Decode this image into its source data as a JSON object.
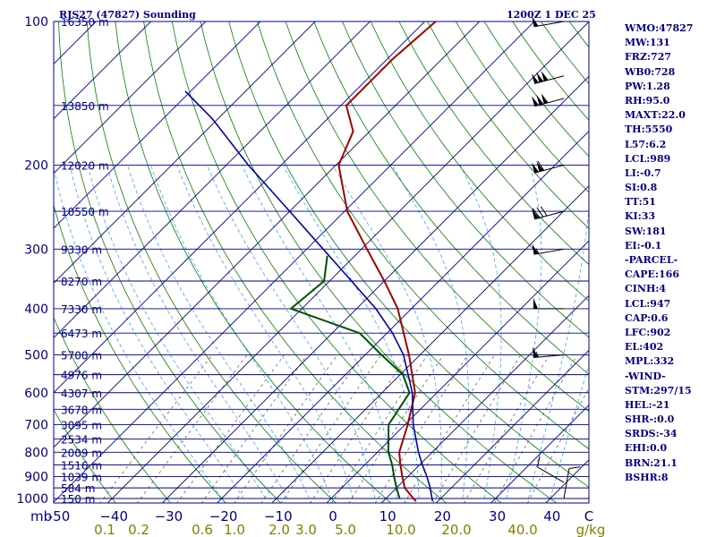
{
  "header": {
    "station": "RJS27 (47827) Sounding",
    "time": "1200Z  1 DEC 25"
  },
  "indices": [
    "WMO:47827",
    "MW:131",
    "FRZ:727",
    "WB0:728",
    "PW:1.28",
    "RH:95.0",
    "MAXT:22.0",
    "TH:5550",
    "L57:6.2",
    "LCL:989",
    "LI:-0.7",
    "SI:0.8",
    "TT:51",
    "KI:33",
    "SW:181",
    "EI:-0.1",
    "-PARCEL-",
    "CAPE:166",
    "CINH:4",
    "LCL:947",
    "CAP:0.6",
    "LFC:902",
    "EL:402",
    "MPL:332",
    "-WIND-",
    "STM:297/15",
    "HEL:-21",
    "SHR-:0.0",
    "SRDS:-34",
    "EHI:0.0",
    "BRN:21.1",
    "BSHR:8"
  ],
  "colors": {
    "frame": "#000080",
    "isobar": "#000080",
    "isotherm": "#000080",
    "dry_adiabat": "#008000",
    "moist_adiabat": "#40a0ff",
    "mixing_ratio": "#606060",
    "temperature": "#a00000",
    "dewpoint": "#005000",
    "parcel": "#0000a0",
    "wind": "#000000",
    "plot_bg": "#ffffff"
  },
  "chart_data": {
    "type": "skew-t",
    "pressure_axis": {
      "unit": "mb",
      "range": [
        1000,
        100
      ],
      "scale": "log",
      "ticks": [
        100,
        200,
        300,
        400,
        500,
        600,
        700,
        800,
        900,
        1000
      ]
    },
    "temperature_axis": {
      "range": [
        -50,
        50
      ],
      "ticks": [
        -50,
        -40,
        -30,
        -20,
        -10,
        0,
        10,
        20,
        30,
        40
      ],
      "tick_labels": [
        "-50",
        "−40",
        "−30",
        "−20",
        "−10",
        "0",
        "10",
        "20",
        "30",
        "40"
      ]
    },
    "mixing_ratio_axis": {
      "unit": "g/kg",
      "tick_labels": [
        "0.1",
        "0.2",
        "0.6",
        "1.0",
        "2.0",
        "3.0",
        "5.0",
        "10.0",
        "20.0",
        "40.0"
      ]
    },
    "corner_labels": {
      "mb": "mb",
      "zero": "0",
      "c": "C",
      "gkg": "g/kg"
    },
    "height_labels": [
      {
        "p": 100,
        "text": "16350 m"
      },
      {
        "p": 150,
        "text": "13850 m"
      },
      {
        "p": 200,
        "text": "12020 m"
      },
      {
        "p": 250,
        "text": "10550 m"
      },
      {
        "p": 300,
        "text": "9330 m"
      },
      {
        "p": 350,
        "text": "8270 m"
      },
      {
        "p": 400,
        "text": "7330 m"
      },
      {
        "p": 450,
        "text": "6473 m"
      },
      {
        "p": 500,
        "text": "5700 m"
      },
      {
        "p": 550,
        "text": "4976 m"
      },
      {
        "p": 600,
        "text": "4307 m"
      },
      {
        "p": 650,
        "text": "3678 m"
      },
      {
        "p": 700,
        "text": "3095 m"
      },
      {
        "p": 750,
        "text": "2534 m"
      },
      {
        "p": 800,
        "text": "2009 m"
      },
      {
        "p": 850,
        "text": "1516 m"
      },
      {
        "p": 900,
        "text": "1039 m"
      },
      {
        "p": 950,
        "text": "584 m"
      },
      {
        "p": 1000,
        "text": "150 m"
      }
    ],
    "series": [
      {
        "key": "temperature",
        "points": [
          [
            1013,
            16.0
          ],
          [
            1000,
            15.0
          ],
          [
            950,
            11.5
          ],
          [
            900,
            9.0
          ],
          [
            850,
            6.5
          ],
          [
            800,
            4.0
          ],
          [
            700,
            0.5
          ],
          [
            600,
            -4.0
          ],
          [
            500,
            -12.0
          ],
          [
            400,
            -22.5
          ],
          [
            350,
            -30.0
          ],
          [
            300,
            -39.0
          ],
          [
            250,
            -49.5
          ],
          [
            200,
            -59.5
          ],
          [
            170,
            -63.0
          ],
          [
            150,
            -69.0
          ],
          [
            120,
            -69.0
          ],
          [
            100,
            -68.0
          ]
        ]
      },
      {
        "key": "dewpoint",
        "points": [
          [
            1000,
            12.5
          ],
          [
            950,
            10.0
          ],
          [
            900,
            7.5
          ],
          [
            850,
            5.0
          ],
          [
            800,
            2.0
          ],
          [
            700,
            -3.0
          ],
          [
            600,
            -5.0
          ],
          [
            550,
            -9.5
          ],
          [
            500,
            -17.0
          ],
          [
            450,
            -25.0
          ],
          [
            400,
            -42.0
          ],
          [
            350,
            -41.0
          ],
          [
            310,
            -45.0
          ]
        ]
      },
      {
        "key": "parcel",
        "points": [
          [
            1013,
            19.0
          ],
          [
            947,
            16.0
          ],
          [
            900,
            13.5
          ],
          [
            850,
            10.5
          ],
          [
            800,
            7.5
          ],
          [
            700,
            1.5
          ],
          [
            600,
            -4.5
          ],
          [
            500,
            -13.0
          ],
          [
            450,
            -19.0
          ],
          [
            400,
            -26.5
          ],
          [
            350,
            -36.0
          ],
          [
            300,
            -47.0
          ],
          [
            250,
            -60.0
          ],
          [
            200,
            -76.0
          ],
          [
            160,
            -91.0
          ],
          [
            140,
            -101.0
          ]
        ]
      }
    ],
    "wind_barbs": [
      {
        "p": 100,
        "dir": 260,
        "spd": 50
      },
      {
        "p": 130,
        "dir": 255,
        "spd": 150
      },
      {
        "p": 145,
        "dir": 255,
        "spd": 150
      },
      {
        "p": 200,
        "dir": 255,
        "spd": 110
      },
      {
        "p": 250,
        "dir": 255,
        "spd": 80
      },
      {
        "p": 300,
        "dir": 260,
        "spd": 55
      },
      {
        "p": 400,
        "dir": 270,
        "spd": 50
      },
      {
        "p": 500,
        "dir": 265,
        "spd": 55
      },
      {
        "p": 925,
        "dir": 300,
        "spd": 10
      },
      {
        "p": 1000,
        "dir": 10,
        "spd": 10
      }
    ]
  }
}
